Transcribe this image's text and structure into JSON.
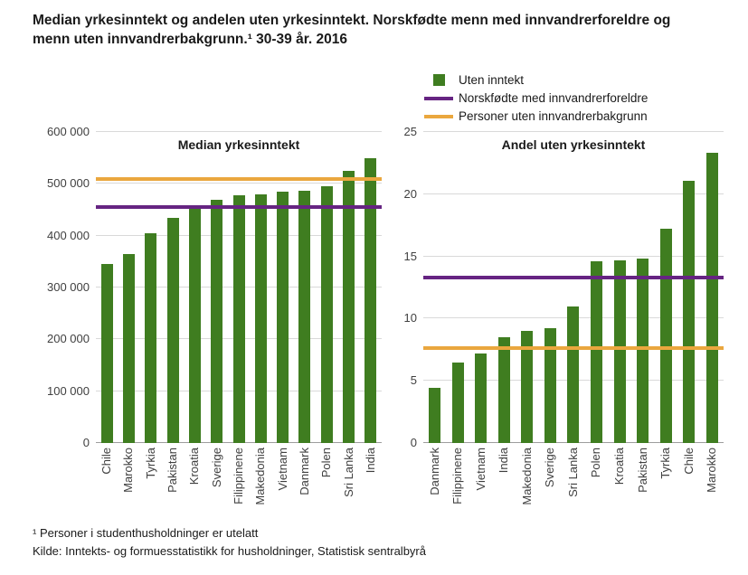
{
  "title": "Median yrkesinntekt og andelen uten yrkesinntekt. Norskfødte menn med innvandrerforeldre og menn uten innvandrerbakgrunn.¹ 30-39 år. 2016",
  "legend": {
    "items": [
      {
        "label": "Uten inntekt",
        "type": "square",
        "color": "#3f7d20"
      },
      {
        "label": "Norskfødte med innvandrerforeldre",
        "type": "line",
        "color": "#662482"
      },
      {
        "label": "Personer uten innvandrerbakgrunn",
        "type": "line",
        "color": "#eaa73e"
      }
    ]
  },
  "footnotes": [
    "¹ Personer i studenthusholdninger  er utelatt",
    "Kilde: Inntekts- og formuesstatistikk for husholdninger,  Statistisk sentralbyrå"
  ],
  "colors": {
    "bar": "#3f7d20",
    "purple_line": "#662482",
    "yellow_line": "#eaa73e",
    "grid": "#d9d9d9"
  },
  "chart_data": [
    {
      "type": "bar",
      "title": "Median yrkesinntekt",
      "categories": [
        "Chile",
        "Marokko",
        "Tyrkia",
        "Pakistan",
        "Kroatia",
        "Sverige",
        "Filippinene",
        "Makedonia",
        "Vietnam",
        "Danmark",
        "Polen",
        "Sri Lanka",
        "India"
      ],
      "values": [
        345000,
        365000,
        405000,
        435000,
        455000,
        470000,
        478000,
        480000,
        485000,
        487000,
        495000,
        525000,
        550000
      ],
      "xlabel": "",
      "ylabel": "",
      "ylim": [
        0,
        600000
      ],
      "ytick_step": 100000,
      "ytick_labels": [
        "0",
        "100 000",
        "200 000",
        "300 000",
        "400 000",
        "500 000",
        "600 000"
      ],
      "grid": true,
      "reference_lines": [
        {
          "name": "Norskfødte med innvandrerforeldre",
          "value": 455000,
          "color": "#662482"
        },
        {
          "name": "Personer uten innvandrerbakgrunn",
          "value": 510000,
          "color": "#eaa73e"
        }
      ]
    },
    {
      "type": "bar",
      "title": "Andel uten yrkesinntekt",
      "categories": [
        "Danmark",
        "Filippinene",
        "Vietnam",
        "India",
        "Makedonia",
        "Sverige",
        "Sri Lanka",
        "Polen",
        "Kroatia",
        "Pakistan",
        "Tyrkia",
        "Chile",
        "Marokko"
      ],
      "values": [
        4.4,
        6.5,
        7.2,
        8.5,
        9.0,
        9.2,
        11.0,
        14.6,
        14.7,
        14.8,
        17.2,
        21.1,
        23.3
      ],
      "xlabel": "",
      "ylabel": "",
      "ylim": [
        0,
        25
      ],
      "ytick_step": 5,
      "ytick_labels": [
        "0",
        "5",
        "10",
        "15",
        "20",
        "25"
      ],
      "grid": true,
      "reference_lines": [
        {
          "name": "Norskfødte med innvandrerforeldre",
          "value": 13.3,
          "color": "#662482"
        },
        {
          "name": "Personer uten innvandrerbakgrunn",
          "value": 7.6,
          "color": "#eaa73e"
        }
      ]
    }
  ]
}
